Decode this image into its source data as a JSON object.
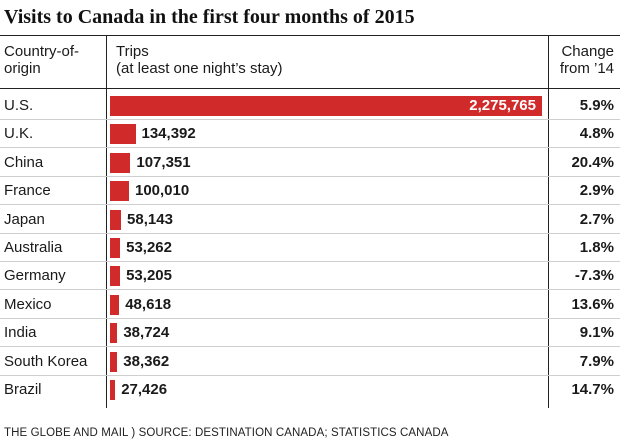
{
  "title": "Visits to Canada in the first four months of 2015",
  "headers": {
    "country": "Country-of-origin",
    "trips_line1": "Trips",
    "trips_line2": "(at least one night’s stay)",
    "change_line1": "Change",
    "change_line2": "from ’14"
  },
  "colors": {
    "bar": "#d12a2a"
  },
  "chart_data": {
    "type": "bar",
    "orientation": "horizontal",
    "title": "Visits to Canada in the first four months of 2015",
    "categories": [
      "U.S.",
      "U.K.",
      "China",
      "France",
      "Japan",
      "Australia",
      "Germany",
      "Mexico",
      "India",
      "South Korea",
      "Brazil"
    ],
    "values": [
      2275765,
      134392,
      107351,
      100010,
      58143,
      53262,
      53205,
      48618,
      38724,
      38362,
      27426
    ],
    "value_labels": [
      "2,275,765",
      "134,392",
      "107,351",
      "100,010",
      "58,143",
      "53,262",
      "53,205",
      "48,618",
      "38,724",
      "38,362",
      "27,426"
    ],
    "change_labels": [
      "5.9%",
      "4.8%",
      "20.4%",
      "2.9%",
      "2.7%",
      "1.8%",
      "-7.3%",
      "13.6%",
      "9.1%",
      "7.9%",
      "14.7%"
    ],
    "xlim": [
      0,
      2275765
    ],
    "grid": false
  },
  "source": "THE GLOBE AND MAIL ) SOURCE: DESTINATION CANADA; STATISTICS CANADA"
}
